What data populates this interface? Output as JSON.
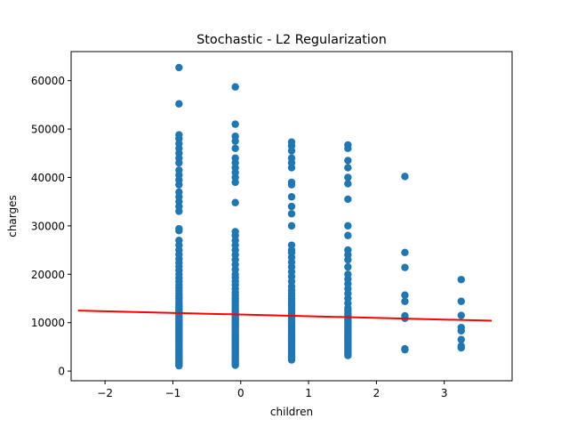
{
  "chart_data": {
    "type": "scatter",
    "title": "Stochastic - L2 Regularization",
    "xlabel": "children",
    "ylabel": "charges",
    "xlim": [
      -2.5,
      4.0
    ],
    "ylim": [
      -2000,
      66000
    ],
    "xticks": [
      "−2",
      "−1",
      "0",
      "1",
      "2",
      "3"
    ],
    "xtick_values": [
      -2,
      -1,
      0,
      1,
      2,
      3
    ],
    "yticks": [
      "0",
      "10000",
      "20000",
      "30000",
      "40000",
      "50000",
      "60000"
    ],
    "ytick_values": [
      0,
      10000,
      20000,
      30000,
      40000,
      50000,
      60000
    ],
    "grid": false,
    "colors": {
      "points": "#1f77b4",
      "line": "#ff0000",
      "axes": "#000000"
    },
    "series": [
      {
        "type": "scatter",
        "x_groups": [
          {
            "x": -0.91,
            "y": [
              1100,
              1300,
              1600,
              1900,
              2200,
              2500,
              2800,
              3100,
              3400,
              3700,
              4000,
              4300,
              4600,
              4900,
              5200,
              5500,
              5800,
              6100,
              6400,
              6700,
              7000,
              7300,
              7600,
              7900,
              8200,
              8500,
              8800,
              9100,
              9400,
              9700,
              10000,
              10300,
              10600,
              10900,
              11200,
              11500,
              11800,
              12100,
              12400,
              12700,
              13000,
              13300,
              13700,
              14100,
              14500,
              15000,
              15500,
              16000,
              16600,
              17200,
              17800,
              18500,
              19200,
              20000,
              20800,
              21600,
              22400,
              23200,
              24100,
              25000,
              26000,
              27000,
              29000,
              29400,
              33000,
              34000,
              35000,
              36000,
              37000,
              38500,
              39500,
              40500,
              41500,
              43000,
              44000,
              45000,
              46000,
              47000,
              48000,
              48800,
              55200,
              62700
            ]
          },
          {
            "x": -0.08,
            "y": [
              1200,
              1500,
              1800,
              2100,
              2400,
              2700,
              3000,
              3300,
              3600,
              3900,
              4200,
              4500,
              4800,
              5100,
              5400,
              5700,
              6000,
              6300,
              6600,
              6900,
              7200,
              7500,
              7800,
              8100,
              8400,
              8700,
              9000,
              9300,
              9600,
              9900,
              10200,
              10500,
              10800,
              11100,
              11400,
              11800,
              12200,
              12600,
              13000,
              13500,
              14000,
              14500,
              15000,
              15600,
              16200,
              17000,
              17800,
              18500,
              19300,
              20000,
              21000,
              22000,
              23000,
              24000,
              25000,
              26000,
              27000,
              28000,
              28800,
              34800,
              39000,
              40000,
              41000,
              42000,
              43000,
              44000,
              46000,
              47500,
              48500,
              51000,
              58700
            ]
          },
          {
            "x": 0.75,
            "y": [
              2300,
              2700,
              3100,
              3500,
              3900,
              4300,
              4700,
              5100,
              5500,
              5900,
              6300,
              6700,
              7100,
              7500,
              7900,
              8300,
              8700,
              9100,
              9500,
              9900,
              10300,
              10700,
              11100,
              11500,
              12000,
              12500,
              13000,
              13500,
              14000,
              14500,
              15000,
              15500,
              16000,
              16700,
              17500,
              18500,
              19500,
              20500,
              21500,
              22500,
              23500,
              24500,
              25000,
              26000,
              30000,
              32500,
              34000,
              36000,
              38500,
              39000,
              42000,
              43000,
              44000,
              45500,
              46500,
              47300
            ]
          },
          {
            "x": 1.58,
            "y": [
              3200,
              3600,
              4000,
              4400,
              4800,
              5200,
              5600,
              6000,
              6400,
              6800,
              7200,
              7600,
              8000,
              8400,
              8800,
              9200,
              9600,
              10000,
              10400,
              10800,
              11200,
              11600,
              12000,
              12500,
              13000,
              14000,
              15000,
              16000,
              17000,
              18000,
              19000,
              20000,
              21500,
              23000,
              24000,
              25000,
              28000,
              30000,
              35500,
              38700,
              40000,
              42000,
              43500,
              46000,
              46700
            ]
          },
          {
            "x": 2.42,
            "y": [
              4400,
              4600,
              10900,
              11400,
              14400,
              15700,
              21400,
              24500,
              40200
            ]
          },
          {
            "x": 3.25,
            "y": [
              4800,
              5200,
              6500,
              8300,
              9000,
              11500,
              14400,
              18900
            ]
          }
        ]
      },
      {
        "type": "line",
        "x": [
          -2.4,
          3.7
        ],
        "y": [
          12500,
          10400
        ]
      }
    ]
  }
}
